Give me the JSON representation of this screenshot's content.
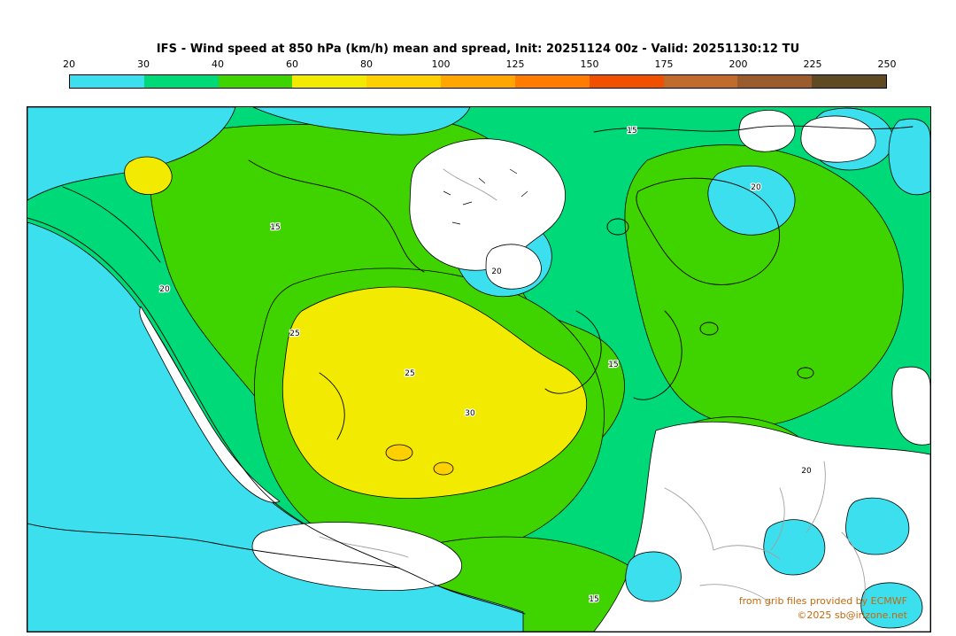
{
  "header": {
    "title": "IFS - Wind speed at 850 hPa (km/h) mean and spread, Init: 20251124 00z - Valid: 20251130:12 TU"
  },
  "colorbar": {
    "ticks": [
      "20",
      "30",
      "40",
      "60",
      "80",
      "100",
      "125",
      "150",
      "175",
      "200",
      "225",
      "250"
    ],
    "colors": [
      "#3cdfee",
      "#00d977",
      "#3fd400",
      "#f2ea00",
      "#ffd000",
      "#ffa600",
      "#ff7c00",
      "#f05000",
      "#c06c2c",
      "#9a5b2d",
      "#5f4a21"
    ]
  },
  "map": {
    "contour_labels": [
      "15",
      "20",
      "15",
      "20",
      "25",
      "30",
      "20",
      "25",
      "15",
      "20",
      "15"
    ],
    "attribution_line1": "from grib files provided by ECMWF",
    "attribution_line2": "©2025 sb@irizone.net"
  },
  "colors": {
    "cyan": "#3cdfee",
    "green_low": "#00d977",
    "green_mid": "#3fd400",
    "yellow": "#f2ea00",
    "gold": "#ffd000",
    "land_white": "#ffffff",
    "attribution": "#c06a10",
    "contour": "#000000",
    "border_gray": "#a0a0a0"
  }
}
